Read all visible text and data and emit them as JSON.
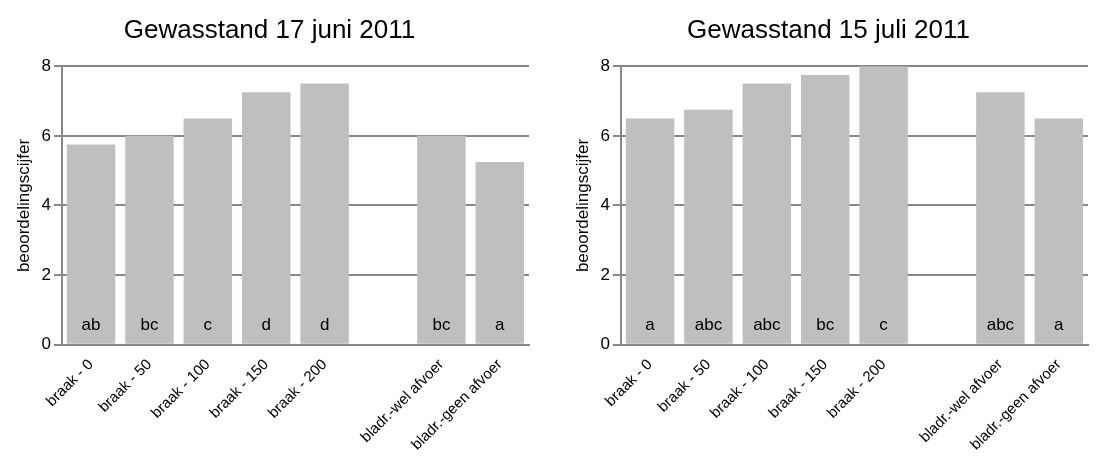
{
  "chart_data": [
    {
      "type": "bar",
      "title": "Gewasstand 17 juni 2011",
      "ylabel": "beoordelingscijfer",
      "categories": [
        "braak - 0",
        "braak - 50",
        "braak - 100",
        "braak - 150",
        "braak - 200",
        null,
        "bladr.-wel afvoer",
        "bladr.-geen afvoer"
      ],
      "values": [
        5.75,
        6,
        6.5,
        7.25,
        7.5,
        null,
        6,
        5.25
      ],
      "color": "#bfbfbf",
      "value_labels": [
        "ab",
        "bc",
        "c",
        "d",
        "d",
        null,
        "bc",
        "a"
      ],
      "ylim": [
        0,
        8
      ],
      "yticks": [
        0,
        2,
        4,
        6,
        8
      ],
      "grid": "y"
    },
    {
      "type": "bar",
      "title": "Gewasstand 15 juli 2011",
      "ylabel": "beoordelingscijfer",
      "categories": [
        "braak - 0",
        "braak - 50",
        "braak - 100",
        "braak - 150",
        "braak - 200",
        null,
        "bladr.-wel afvoer",
        "bladr.-geen afvoer"
      ],
      "values": [
        6.5,
        6.75,
        7.5,
        7.75,
        8,
        null,
        7.25,
        6.5
      ],
      "color": "#bfbfbf",
      "value_labels": [
        "a",
        "abc",
        "abc",
        "bc",
        "c",
        null,
        "abc",
        "a"
      ],
      "ylim": [
        0,
        8
      ],
      "yticks": [
        0,
        2,
        4,
        6,
        8
      ],
      "grid": "y"
    }
  ]
}
